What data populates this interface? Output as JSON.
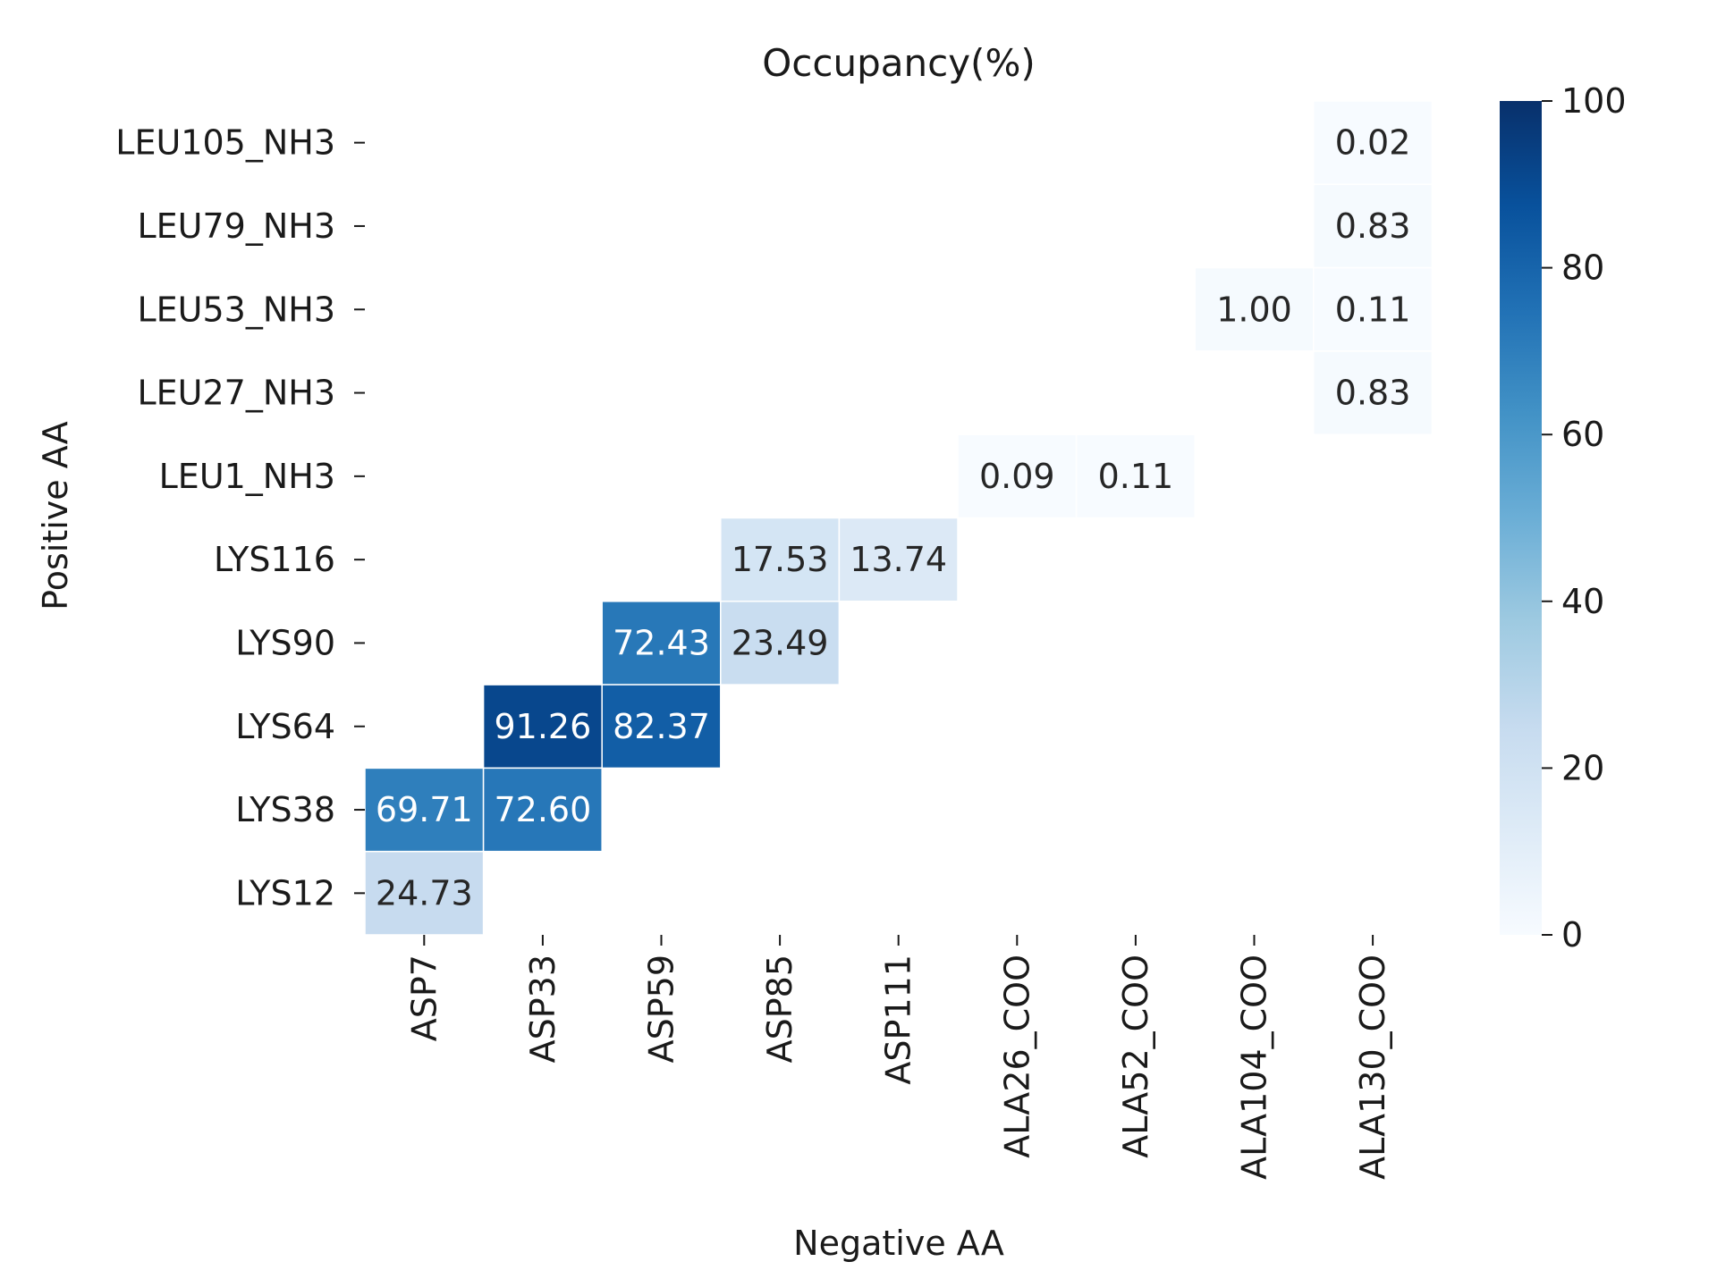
{
  "chart_data": {
    "type": "heatmap",
    "title": "Occupancy(%)",
    "xlabel": "Negative AA",
    "ylabel": "Positive AA",
    "x_categories": [
      "ASP7",
      "ASP33",
      "ASP59",
      "ASP85",
      "ASP111",
      "ALA26_COO",
      "ALA52_COO",
      "ALA104_COO",
      "ALA130_COO"
    ],
    "y_categories": [
      "LEU105_NH3",
      "LEU79_NH3",
      "LEU53_NH3",
      "LEU27_NH3",
      "LEU1_NH3",
      "LYS116",
      "LYS90",
      "LYS64",
      "LYS38",
      "LYS12"
    ],
    "cells": [
      {
        "x": "ALA130_COO",
        "y": "LEU105_NH3",
        "value": 0.02,
        "label": "0.02"
      },
      {
        "x": "ALA130_COO",
        "y": "LEU79_NH3",
        "value": 0.83,
        "label": "0.83"
      },
      {
        "x": "ALA104_COO",
        "y": "LEU53_NH3",
        "value": 1.0,
        "label": "1.00"
      },
      {
        "x": "ALA130_COO",
        "y": "LEU53_NH3",
        "value": 0.11,
        "label": "0.11"
      },
      {
        "x": "ALA130_COO",
        "y": "LEU27_NH3",
        "value": 0.83,
        "label": "0.83"
      },
      {
        "x": "ALA26_COO",
        "y": "LEU1_NH3",
        "value": 0.09,
        "label": "0.09"
      },
      {
        "x": "ALA52_COO",
        "y": "LEU1_NH3",
        "value": 0.11,
        "label": "0.11"
      },
      {
        "x": "ASP85",
        "y": "LYS116",
        "value": 17.53,
        "label": "17.53"
      },
      {
        "x": "ASP111",
        "y": "LYS116",
        "value": 13.74,
        "label": "13.74"
      },
      {
        "x": "ASP59",
        "y": "LYS90",
        "value": 72.43,
        "label": "72.43"
      },
      {
        "x": "ASP85",
        "y": "LYS90",
        "value": 23.49,
        "label": "23.49"
      },
      {
        "x": "ASP33",
        "y": "LYS64",
        "value": 91.26,
        "label": "91.26"
      },
      {
        "x": "ASP59",
        "y": "LYS64",
        "value": 82.37,
        "label": "82.37"
      },
      {
        "x": "ASP7",
        "y": "LYS38",
        "value": 69.71,
        "label": "69.71"
      },
      {
        "x": "ASP33",
        "y": "LYS38",
        "value": 72.6,
        "label": "72.60"
      },
      {
        "x": "ASP7",
        "y": "LYS12",
        "value": 24.73,
        "label": "24.73"
      }
    ],
    "colorbar": {
      "colormap": "Blues",
      "range": [
        0,
        100
      ],
      "ticks": [
        0,
        20,
        40,
        60,
        80,
        100
      ],
      "tick_labels": [
        "0",
        "20",
        "40",
        "60",
        "80",
        "100"
      ]
    },
    "grid": false,
    "legend": "colorbar-right"
  }
}
